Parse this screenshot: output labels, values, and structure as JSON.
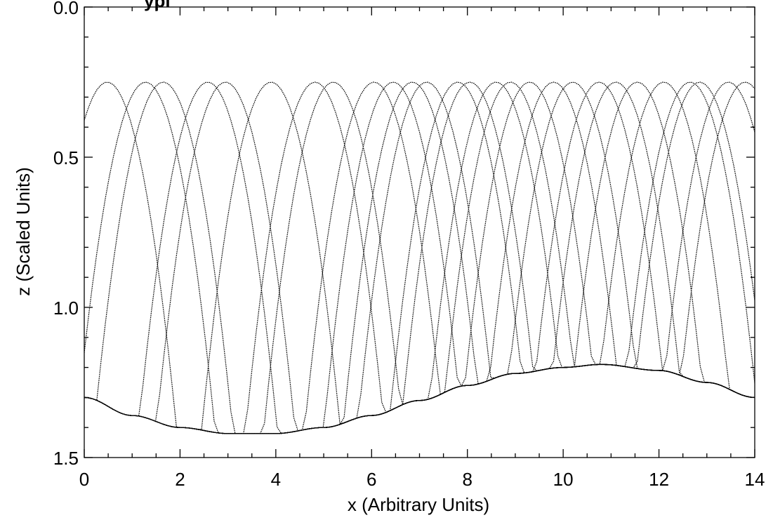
{
  "chart_data": {
    "type": "line",
    "title": "ypi",
    "xlabel": "x (Arbitrary Units)",
    "ylabel": "z (Scaled Units)",
    "xlim": [
      0,
      14
    ],
    "ylim": [
      1.5,
      0.0
    ],
    "y_axis_inverted": true,
    "grid": false,
    "legend": "none",
    "xticks": [
      0,
      2,
      4,
      6,
      8,
      10,
      12,
      14
    ],
    "xtick_labels": [
      "0",
      "2",
      "4",
      "6",
      "8",
      "10",
      "12",
      "14"
    ],
    "yticks": [
      0.0,
      0.5,
      1.0,
      1.5
    ],
    "ytick_labels": [
      "0.0",
      "0.5",
      "1.0",
      "1.5"
    ],
    "line_color": "#000000",
    "bottom_boundary": {
      "x": [
        0,
        1,
        2,
        3,
        4,
        5,
        6,
        7,
        8,
        9,
        10,
        10.8,
        12,
        13,
        14
      ],
      "z": [
        1.3,
        1.36,
        1.4,
        1.42,
        1.42,
        1.4,
        1.36,
        1.31,
        1.26,
        1.22,
        1.2,
        1.19,
        1.21,
        1.25,
        1.3
      ]
    },
    "turning_level_z": 0.25,
    "bounce_apex_x": [
      0.48,
      1.28,
      1.65,
      2.58,
      2.95,
      3.9,
      4.82,
      5.2,
      6.05,
      6.45,
      6.85,
      7.15,
      7.8,
      8.05,
      8.6,
      8.9,
      9.3,
      9.8,
      10.2,
      10.75,
      11.1,
      11.55,
      12.1,
      12.65,
      12.85,
      13.45,
      13.8
    ],
    "bounce_half_width": 0.5,
    "bounce_curvature": 0.55
  }
}
